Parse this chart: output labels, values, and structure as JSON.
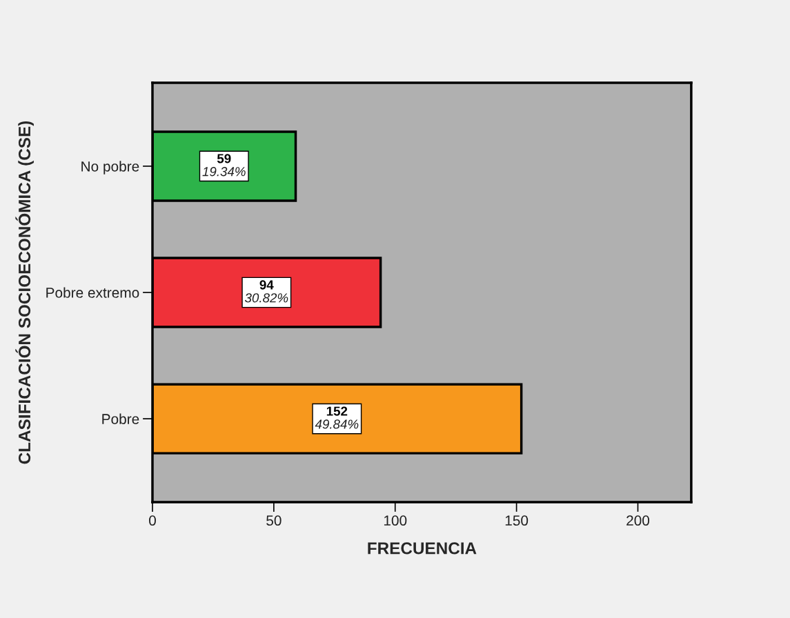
{
  "chart_data": {
    "type": "bar",
    "orientation": "horizontal",
    "categories": [
      "No pobre",
      "Pobre extremo",
      "Pobre"
    ],
    "values": [
      59,
      94,
      152
    ],
    "colors": [
      "#2db34a",
      "#ef3139",
      "#f7981d"
    ],
    "value_labels": [
      "59\n19.34%",
      "94\n30.82%",
      "152\n49.84%"
    ],
    "xlabel": "FRECUENCIA",
    "ylabel": "CLASIFICACIÓN SOCIOECONÓMICA (CSE)",
    "xlim": [
      0,
      222
    ],
    "xticks": [
      0,
      50,
      100,
      150,
      200
    ]
  }
}
